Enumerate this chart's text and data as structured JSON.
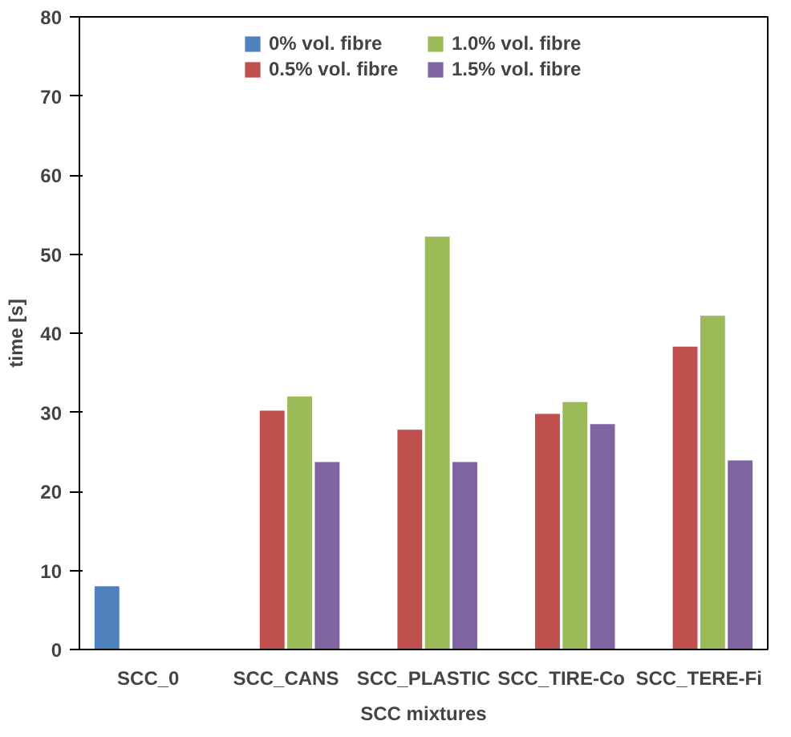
{
  "chart_data": {
    "type": "bar",
    "xlabel": "SCC mixtures",
    "ylabel": "time [s]",
    "categories": [
      "SCC_0",
      "SCC_CANS",
      "SCC_PLASTIC",
      "SCC_TIRE-Co",
      "SCC_TERE-Fi"
    ],
    "series": [
      {
        "name": "0% vol. fibre",
        "color": "#4f81bd",
        "values": [
          8.0,
          null,
          null,
          null,
          null
        ]
      },
      {
        "name": "0.5% vol. fibre",
        "color": "#c0504d",
        "values": [
          null,
          30.2,
          27.8,
          29.8,
          38.3
        ]
      },
      {
        "name": "1.0% vol. fibre",
        "color": "#9bbb59",
        "values": [
          null,
          32.0,
          52.2,
          31.3,
          42.2
        ]
      },
      {
        "name": "1.5% vol. fibre",
        "color": "#8064a2",
        "values": [
          null,
          23.7,
          23.7,
          28.5,
          23.9
        ]
      }
    ],
    "ylim": [
      0,
      80
    ],
    "yticks": [
      0,
      10,
      20,
      30,
      40,
      50,
      60,
      70,
      80
    ],
    "grid": false,
    "legend": "top"
  }
}
